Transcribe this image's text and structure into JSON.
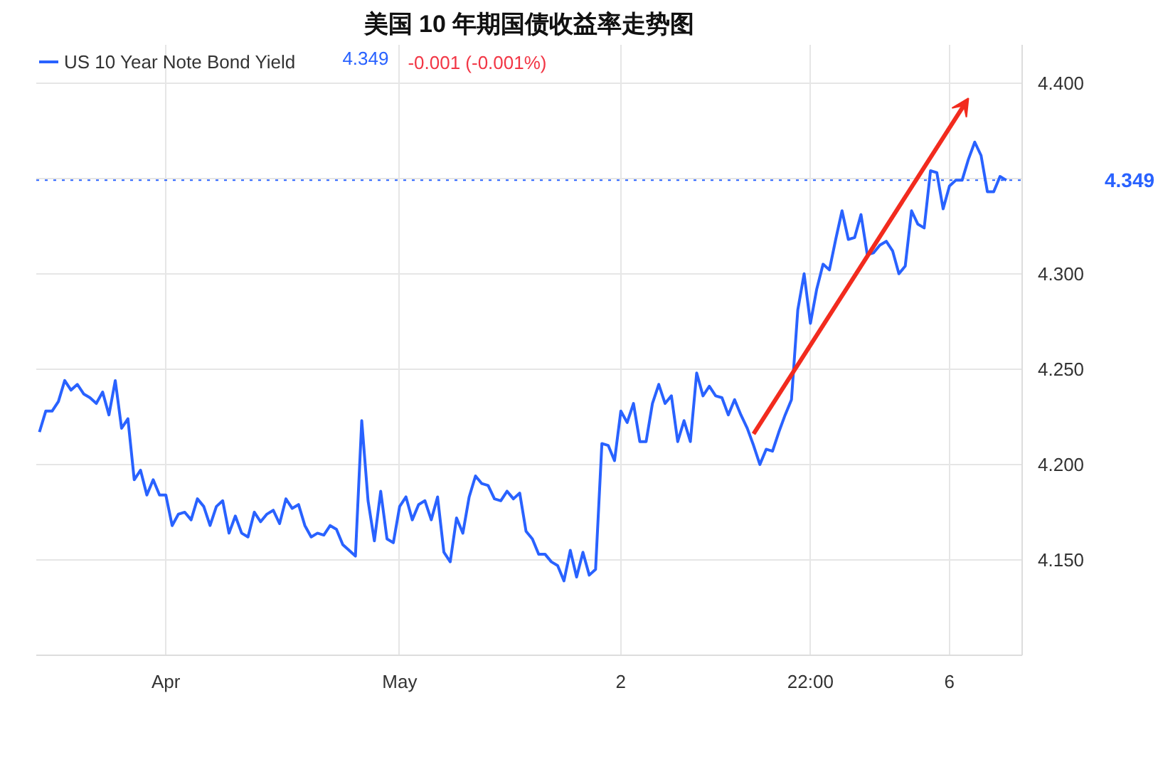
{
  "chart_data": {
    "type": "line",
    "title": "美国 10 年期国债收益率走势图",
    "categories": [
      null,
      null,
      null,
      null,
      null,
      null,
      null,
      null,
      null,
      null,
      null,
      null,
      null,
      null,
      null,
      null,
      null,
      null,
      null,
      null,
      "Apr",
      null,
      null,
      null,
      null,
      null,
      null,
      null,
      null,
      null,
      null,
      null,
      null,
      null,
      null,
      null,
      null,
      null,
      null,
      null,
      null,
      null,
      null,
      null,
      null,
      null,
      null,
      null,
      null,
      null,
      null,
      null,
      null,
      null,
      null,
      null,
      null,
      "May",
      null,
      null,
      null,
      null,
      null,
      null,
      null,
      null,
      null,
      null,
      null,
      null,
      null,
      null,
      null,
      null,
      null,
      null,
      null,
      null,
      null,
      null,
      null,
      null,
      null,
      null,
      null,
      null,
      null,
      null,
      null,
      null,
      null,
      null,
      "2",
      null,
      null,
      null,
      null,
      null,
      null,
      null,
      null,
      null,
      null,
      null,
      null,
      null,
      null,
      null,
      null,
      null,
      null,
      null,
      null,
      null,
      null,
      null,
      null,
      null,
      null,
      null,
      null,
      null,
      "22:00",
      null,
      null,
      null,
      null,
      null,
      null,
      null,
      null,
      null,
      null,
      null,
      null,
      null,
      null,
      null,
      null,
      null,
      null,
      null,
      null,
      null,
      "6",
      null,
      null,
      null,
      null,
      null,
      null,
      null,
      null,
      null
    ],
    "series": [
      {
        "name": "US 10 Year Note Bond Yield",
        "color": "#2962ff",
        "values": [
          4.217,
          4.228,
          4.228,
          4.233,
          4.244,
          4.239,
          4.242,
          4.237,
          4.235,
          4.232,
          4.238,
          4.226,
          4.244,
          4.219,
          4.224,
          4.192,
          4.197,
          4.184,
          4.192,
          4.184,
          4.184,
          4.168,
          4.174,
          4.175,
          4.171,
          4.182,
          4.178,
          4.168,
          4.178,
          4.181,
          4.164,
          4.173,
          4.164,
          4.162,
          4.175,
          4.17,
          4.174,
          4.176,
          4.169,
          4.182,
          4.177,
          4.179,
          4.168,
          4.162,
          4.164,
          4.163,
          4.168,
          4.166,
          4.158,
          4.155,
          4.152,
          4.223,
          4.181,
          4.16,
          4.186,
          4.161,
          4.159,
          4.178,
          4.183,
          4.171,
          4.179,
          4.181,
          4.171,
          4.183,
          4.154,
          4.149,
          4.172,
          4.164,
          4.183,
          4.194,
          4.19,
          4.189,
          4.182,
          4.181,
          4.186,
          4.182,
          4.185,
          4.165,
          4.161,
          4.153,
          4.153,
          4.149,
          4.147,
          4.139,
          4.155,
          4.141,
          4.154,
          4.142,
          4.145,
          4.211,
          4.21,
          4.202,
          4.228,
          4.222,
          4.232,
          4.212,
          4.212,
          4.232,
          4.242,
          4.232,
          4.236,
          4.212,
          4.223,
          4.212,
          4.248,
          4.236,
          4.241,
          4.236,
          4.235,
          4.226,
          4.234,
          4.226,
          4.219,
          4.21,
          4.2,
          4.208,
          4.207,
          4.217,
          4.226,
          4.234,
          4.281,
          4.3,
          4.274,
          4.292,
          4.305,
          4.302,
          4.318,
          4.333,
          4.318,
          4.319,
          4.331,
          4.31,
          4.311,
          4.315,
          4.317,
          4.312,
          4.3,
          4.304,
          4.333,
          4.326,
          4.324,
          4.354,
          4.353,
          4.334,
          4.346,
          4.349,
          4.349,
          4.36,
          4.369,
          4.362,
          4.343,
          4.343,
          4.351,
          4.349
        ]
      }
    ],
    "ylim": [
      4.1,
      4.42
    ],
    "yticks": [
      {
        "value": 4.15,
        "label": "4.150"
      },
      {
        "value": 4.2,
        "label": "4.200"
      },
      {
        "value": 4.25,
        "label": "4.250"
      },
      {
        "value": 4.3,
        "label": "4.300"
      },
      {
        "value": 4.35,
        "label": null
      },
      {
        "value": 4.4,
        "label": "4.400"
      }
    ],
    "ref_lines": [
      {
        "axis": "y",
        "value": 4.349,
        "label": "4.349",
        "color": "#2962ff",
        "line_style": "dotted"
      }
    ],
    "annotations": [
      "4.349",
      "-0.001 (-0.001%)"
    ],
    "grid": true,
    "legend": "top left",
    "marker": "none",
    "line_style": "solid"
  }
}
